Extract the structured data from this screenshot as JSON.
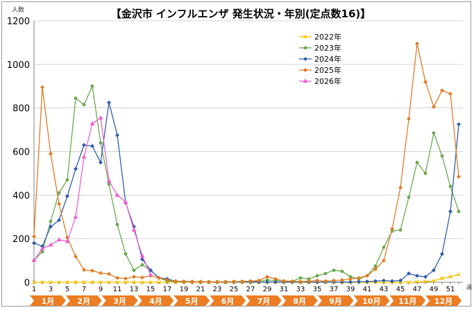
{
  "chart_data": {
    "type": "line",
    "title": "【金沢市 インフルエンザ 発生状況・年別(定点数16)】",
    "ylabel": "人数",
    "xlabel": "週",
    "ylim": [
      0,
      1200
    ],
    "yticks": [
      0,
      200,
      400,
      600,
      800,
      1000,
      1200
    ],
    "xlim": [
      1,
      52
    ],
    "xticks": [
      1,
      3,
      5,
      7,
      9,
      11,
      13,
      15,
      17,
      19,
      21,
      23,
      25,
      27,
      29,
      31,
      33,
      35,
      37,
      39,
      41,
      43,
      45,
      47,
      49,
      51
    ],
    "grid": "horizontal",
    "legend_position": "top-center",
    "months": [
      "1月",
      "2月",
      "3月",
      "4月",
      "5月",
      "6月",
      "7月",
      "8月",
      "9月",
      "10月",
      "11月",
      "12月"
    ],
    "series": [
      {
        "name": "2022年",
        "color": "#f2c200",
        "marker": "x",
        "x": [
          1,
          2,
          3,
          4,
          5,
          6,
          7,
          8,
          9,
          10,
          11,
          12,
          13,
          14,
          15,
          16,
          17,
          18,
          19,
          20,
          21,
          22,
          23,
          24,
          25,
          26,
          27,
          28,
          29,
          30,
          31,
          32,
          33,
          34,
          35,
          36,
          37,
          38,
          39,
          40,
          41,
          42,
          43,
          44,
          45,
          46,
          47,
          48,
          49,
          50,
          51,
          52
        ],
        "values": [
          0,
          0,
          0,
          0,
          0,
          0,
          0,
          0,
          0,
          0,
          0,
          0,
          0,
          0,
          0,
          0,
          0,
          0,
          0,
          0,
          0,
          0,
          0,
          0,
          0,
          0,
          0,
          0,
          0,
          0,
          0,
          0,
          0,
          0,
          0,
          0,
          0,
          0,
          0,
          0,
          0,
          0,
          0,
          0,
          0,
          0,
          2,
          3,
          6,
          18,
          25,
          35
        ]
      },
      {
        "name": "2023年",
        "color": "#6aa84f",
        "marker": "circle",
        "x": [
          1,
          2,
          3,
          4,
          5,
          6,
          7,
          8,
          9,
          10,
          11,
          12,
          13,
          14,
          15,
          16,
          17,
          18,
          19,
          20,
          21,
          22,
          23,
          24,
          25,
          26,
          27,
          28,
          29,
          30,
          31,
          32,
          33,
          34,
          35,
          36,
          37,
          38,
          39,
          40,
          41,
          42,
          43,
          44,
          45,
          46,
          47,
          48,
          49,
          50,
          51,
          52
        ],
        "values": [
          100,
          140,
          280,
          410,
          470,
          845,
          815,
          900,
          640,
          450,
          265,
          130,
          55,
          80,
          55,
          20,
          5,
          3,
          2,
          2,
          2,
          2,
          1,
          1,
          3,
          4,
          5,
          5,
          10,
          8,
          6,
          4,
          20,
          15,
          30,
          40,
          55,
          50,
          25,
          15,
          30,
          75,
          160,
          235,
          240,
          390,
          550,
          500,
          685,
          580,
          440,
          325
        ]
      },
      {
        "name": "2024年",
        "color": "#2e5ea8",
        "marker": "diamond",
        "x": [
          1,
          2,
          3,
          4,
          5,
          6,
          7,
          8,
          9,
          10,
          11,
          12,
          13,
          14,
          15,
          16,
          17,
          18,
          19,
          20,
          21,
          22,
          23,
          24,
          25,
          26,
          27,
          28,
          29,
          30,
          31,
          32,
          33,
          34,
          35,
          36,
          37,
          38,
          39,
          40,
          41,
          42,
          43,
          44,
          45,
          46,
          47,
          48,
          49,
          50,
          51,
          52
        ],
        "values": [
          180,
          165,
          255,
          285,
          395,
          520,
          630,
          625,
          550,
          825,
          675,
          365,
          255,
          105,
          55,
          20,
          15,
          5,
          3,
          2,
          2,
          1,
          1,
          1,
          1,
          1,
          1,
          1,
          1,
          1,
          1,
          1,
          1,
          1,
          1,
          1,
          1,
          1,
          1,
          2,
          3,
          5,
          8,
          5,
          8,
          40,
          30,
          25,
          55,
          130,
          325,
          725
        ]
      },
      {
        "name": "2025年",
        "color": "#e07b24",
        "marker": "diamond",
        "x": [
          1,
          2,
          3,
          4,
          5,
          6,
          7,
          8,
          9,
          10,
          11,
          12,
          13,
          14,
          15,
          16,
          17,
          18,
          19,
          20,
          21,
          22,
          23,
          24,
          25,
          26,
          27,
          28,
          29,
          30,
          31,
          32,
          33,
          34,
          35,
          36,
          37,
          38,
          39,
          40,
          41,
          42,
          43,
          44,
          45,
          46,
          47,
          48,
          49,
          50,
          51,
          52
        ],
        "values": [
          210,
          895,
          590,
          360,
          205,
          118,
          57,
          53,
          42,
          38,
          20,
          17,
          25,
          22,
          30,
          20,
          10,
          5,
          4,
          3,
          3,
          2,
          2,
          2,
          3,
          3,
          5,
          8,
          25,
          15,
          5,
          5,
          3,
          5,
          8,
          5,
          8,
          10,
          15,
          20,
          30,
          60,
          100,
          245,
          435,
          750,
          1095,
          920,
          805,
          880,
          865,
          485
        ]
      },
      {
        "name": "2026年",
        "color": "#ee5fd0",
        "marker": "triangle",
        "x": [
          1,
          2,
          3,
          4,
          5,
          6,
          7,
          8,
          9,
          10,
          11,
          12,
          13,
          14,
          15
        ],
        "values": [
          100,
          155,
          172,
          195,
          188,
          300,
          575,
          728,
          755,
          465,
          400,
          368,
          240,
          122,
          35
        ]
      }
    ]
  }
}
